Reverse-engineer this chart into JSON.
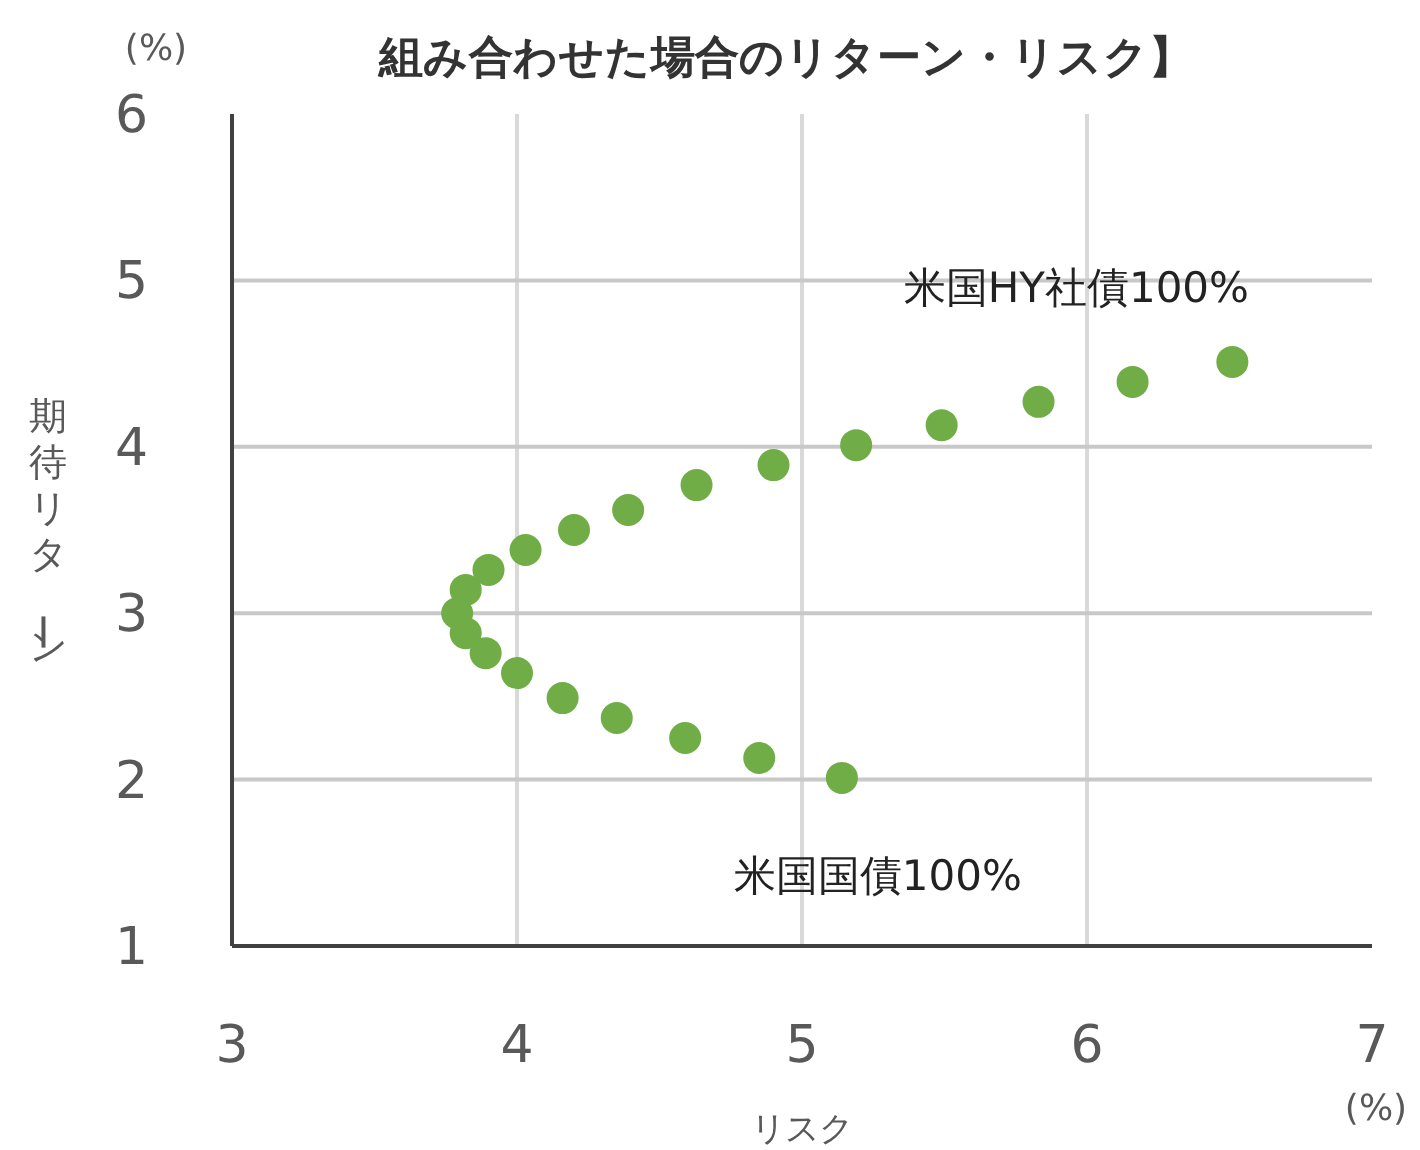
{
  "chart_data": {
    "type": "scatter",
    "title": "組み合わせた場合のリターン・リスク】",
    "xlabel": "リスク",
    "ylabel": "期待リターン",
    "x": [
      5.14,
      4.85,
      4.59,
      4.35,
      4.16,
      4.0,
      3.89,
      3.82,
      3.79,
      3.82,
      3.9,
      4.03,
      4.2,
      4.39,
      4.63,
      4.9,
      5.19,
      5.49,
      5.83,
      6.16,
      6.51
    ],
    "series": [
      {
        "color": "#70ad47",
        "values": [
          2.01,
          2.13,
          2.25,
          2.37,
          2.49,
          2.64,
          2.76,
          2.88,
          3.0,
          3.14,
          3.26,
          3.38,
          3.5,
          3.62,
          3.77,
          3.89,
          4.01,
          4.13,
          4.27,
          4.39,
          4.51
        ]
      }
    ],
    "xlim": [
      3,
      7
    ],
    "xticks": [
      3,
      4,
      5,
      6,
      7
    ],
    "ylim": [
      1,
      6
    ],
    "yticks": [
      1,
      2,
      3,
      4,
      5,
      6
    ],
    "grid": true,
    "marker": "circle",
    "annotations": [
      {
        "text": "米国HY社債100%",
        "x": 6.51,
        "y": 4.51
      },
      {
        "text": "米国国債100%",
        "x": 5.14,
        "y": 2.01
      },
      "(%)",
      "(%)"
    ]
  }
}
